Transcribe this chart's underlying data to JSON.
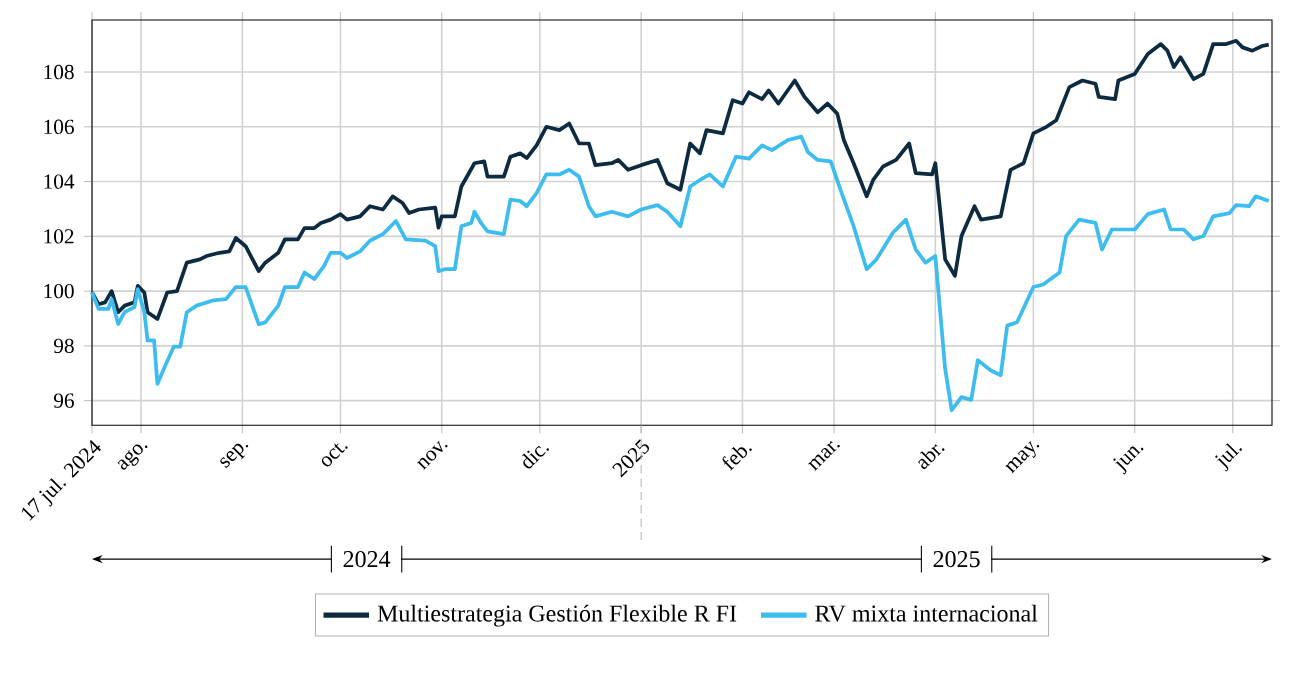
{
  "chart_data": {
    "type": "line",
    "xlim": [
      "2024-07-17",
      "2025-07-13"
    ],
    "ylim": [
      95.1,
      109.9
    ],
    "yticks": [
      96,
      98,
      100,
      102,
      104,
      106,
      108
    ],
    "xticks": [
      {
        "value": "2024-07-17",
        "label": "17 jul. 2024"
      },
      {
        "value": "2024-08-01",
        "label": "ago."
      },
      {
        "value": "2024-09-01",
        "label": "sep."
      },
      {
        "value": "2024-10-01",
        "label": "oct."
      },
      {
        "value": "2024-11-01",
        "label": "nov."
      },
      {
        "value": "2024-12-01",
        "label": "dic."
      },
      {
        "value": "2025-01-01",
        "label": "2025"
      },
      {
        "value": "2025-02-01",
        "label": "feb."
      },
      {
        "value": "2025-03-01",
        "label": "mar."
      },
      {
        "value": "2025-04-01",
        "label": "abr."
      },
      {
        "value": "2025-05-01",
        "label": "may."
      },
      {
        "value": "2025-06-01",
        "label": "jun."
      },
      {
        "value": "2025-07-01",
        "label": "jul."
      }
    ],
    "grid": true,
    "legend": "bottom",
    "marker": "none",
    "line_style": "solid",
    "annotations": [
      "2024",
      "2025"
    ],
    "series": [
      {
        "name": "Multiestrategia Gestión Flexible R FI",
        "color": "#0d2b40",
        "x": [
          "2024-07-17",
          "2024-07-19",
          "2024-07-21",
          "2024-07-23",
          "2024-07-25",
          "2024-07-27",
          "2024-07-30",
          "2024-07-31",
          "2024-08-02",
          "2024-08-03",
          "2024-08-06",
          "2024-08-09",
          "2024-08-12",
          "2024-08-15",
          "2024-08-19",
          "2024-08-21",
          "2024-08-25",
          "2024-08-28",
          "2024-08-30",
          "2024-09-02",
          "2024-09-06",
          "2024-09-08",
          "2024-09-12",
          "2024-09-14",
          "2024-09-18",
          "2024-09-20",
          "2024-09-23",
          "2024-09-25",
          "2024-09-28",
          "2024-10-01",
          "2024-10-03",
          "2024-10-07",
          "2024-10-10",
          "2024-10-14",
          "2024-10-17",
          "2024-10-20",
          "2024-10-22",
          "2024-10-25",
          "2024-10-30",
          "2024-10-31",
          "2024-11-01",
          "2024-11-05",
          "2024-11-07",
          "2024-11-11",
          "2024-11-14",
          "2024-11-15",
          "2024-11-20",
          "2024-11-22",
          "2024-11-25",
          "2024-11-27",
          "2024-11-30",
          "2024-12-03",
          "2024-12-07",
          "2024-12-10",
          "2024-12-13",
          "2024-12-16",
          "2024-12-18",
          "2024-12-23",
          "2024-12-25",
          "2024-12-28",
          "2025-01-01",
          "2025-01-06",
          "2025-01-09",
          "2025-01-13",
          "2025-01-16",
          "2025-01-19",
          "2025-01-21",
          "2025-01-26",
          "2025-01-29",
          "2025-02-01",
          "2025-02-03",
          "2025-02-07",
          "2025-02-09",
          "2025-02-12",
          "2025-02-17",
          "2025-02-20",
          "2025-02-24",
          "2025-02-27",
          "2025-03-02",
          "2025-03-04",
          "2025-03-07",
          "2025-03-11",
          "2025-03-13",
          "2025-03-16",
          "2025-03-20",
          "2025-03-24",
          "2025-03-26",
          "2025-03-31",
          "2025-04-01",
          "2025-04-04",
          "2025-04-07",
          "2025-04-09",
          "2025-04-13",
          "2025-04-15",
          "2025-04-21",
          "2025-04-24",
          "2025-04-28",
          "2025-05-01",
          "2025-05-05",
          "2025-05-08",
          "2025-05-12",
          "2025-05-16",
          "2025-05-20",
          "2025-05-21",
          "2025-05-26",
          "2025-05-27",
          "2025-06-01",
          "2025-06-05",
          "2025-06-09",
          "2025-06-11",
          "2025-06-13",
          "2025-06-15",
          "2025-06-19",
          "2025-06-22",
          "2025-06-25",
          "2025-06-29",
          "2025-07-02",
          "2025-07-04",
          "2025-07-07",
          "2025-07-10",
          "2025-07-12"
        ],
        "values": [
          99.95,
          99.52,
          99.59,
          100.0,
          99.23,
          99.47,
          99.59,
          100.19,
          99.95,
          99.23,
          98.98,
          99.95,
          100.0,
          101.04,
          101.16,
          101.28,
          101.4,
          101.45,
          101.94,
          101.64,
          100.73,
          101.04,
          101.4,
          101.89,
          101.89,
          102.3,
          102.3,
          102.49,
          102.61,
          102.81,
          102.61,
          102.73,
          103.1,
          102.98,
          103.46,
          103.22,
          102.85,
          102.98,
          103.05,
          102.32,
          102.73,
          102.73,
          103.82,
          104.67,
          104.74,
          104.18,
          104.18,
          104.91,
          105.03,
          104.86,
          105.32,
          106.0,
          105.88,
          106.12,
          105.39,
          105.39,
          104.6,
          104.67,
          104.79,
          104.43,
          104.6,
          104.79,
          103.94,
          103.7,
          105.39,
          105.03,
          105.88,
          105.76,
          106.97,
          106.85,
          107.26,
          107.01,
          107.33,
          106.85,
          107.69,
          107.09,
          106.53,
          106.85,
          106.48,
          105.52,
          104.67,
          103.46,
          104.06,
          104.55,
          104.79,
          105.39,
          104.31,
          104.26,
          104.67,
          101.16,
          100.56,
          102.01,
          103.1,
          102.61,
          102.73,
          104.43,
          104.67,
          105.76,
          106.0,
          106.24,
          107.45,
          107.69,
          107.57,
          107.09,
          107.01,
          107.69,
          107.93,
          108.66,
          109.02,
          108.78,
          108.18,
          108.54,
          107.74,
          107.93,
          109.02,
          109.02,
          109.14,
          108.9,
          108.78,
          108.95,
          109.0
        ]
      },
      {
        "name": "RV mixta internacional",
        "color": "#3dbcf0",
        "x": [
          "2024-07-17",
          "2024-07-19",
          "2024-07-22",
          "2024-07-23",
          "2024-07-25",
          "2024-07-27",
          "2024-07-30",
          "2024-07-31",
          "2024-08-02",
          "2024-08-03",
          "2024-08-05",
          "2024-08-06",
          "2024-08-08",
          "2024-08-11",
          "2024-08-13",
          "2024-08-15",
          "2024-08-18",
          "2024-08-23",
          "2024-08-27",
          "2024-08-30",
          "2024-09-02",
          "2024-09-06",
          "2024-09-08",
          "2024-09-12",
          "2024-09-14",
          "2024-09-18",
          "2024-09-20",
          "2024-09-23",
          "2024-09-26",
          "2024-09-28",
          "2024-10-01",
          "2024-10-03",
          "2024-10-07",
          "2024-10-10",
          "2024-10-14",
          "2024-10-18",
          "2024-10-21",
          "2024-10-27",
          "2024-10-30",
          "2024-10-31",
          "2024-11-02",
          "2024-11-05",
          "2024-11-07",
          "2024-11-10",
          "2024-11-11",
          "2024-11-13",
          "2024-11-15",
          "2024-11-20",
          "2024-11-22",
          "2024-11-25",
          "2024-11-27",
          "2024-11-30",
          "2024-12-03",
          "2024-12-07",
          "2024-12-10",
          "2024-12-13",
          "2024-12-16",
          "2024-12-18",
          "2024-12-23",
          "2024-12-28",
          "2025-01-01",
          "2025-01-06",
          "2025-01-09",
          "2025-01-13",
          "2025-01-16",
          "2025-01-19",
          "2025-01-22",
          "2025-01-26",
          "2025-01-30",
          "2025-02-03",
          "2025-02-07",
          "2025-02-10",
          "2025-02-15",
          "2025-02-19",
          "2025-02-21",
          "2025-02-24",
          "2025-02-28",
          "2025-03-03",
          "2025-03-07",
          "2025-03-11",
          "2025-03-14",
          "2025-03-19",
          "2025-03-23",
          "2025-03-26",
          "2025-03-29",
          "2025-04-01",
          "2025-04-04",
          "2025-04-06",
          "2025-04-09",
          "2025-04-12",
          "2025-04-14",
          "2025-04-18",
          "2025-04-21",
          "2025-04-23",
          "2025-04-26",
          "2025-05-01",
          "2025-05-04",
          "2025-05-09",
          "2025-05-11",
          "2025-05-15",
          "2025-05-20",
          "2025-05-22",
          "2025-05-25",
          "2025-06-01",
          "2025-06-05",
          "2025-06-10",
          "2025-06-12",
          "2025-06-16",
          "2025-06-19",
          "2025-06-22",
          "2025-06-25",
          "2025-06-30",
          "2025-07-02",
          "2025-07-06",
          "2025-07-08",
          "2025-07-12"
        ],
        "values": [
          99.95,
          99.35,
          99.35,
          99.7,
          98.8,
          99.23,
          99.42,
          100.07,
          99.23,
          98.2,
          98.2,
          96.61,
          97.17,
          97.97,
          97.97,
          99.23,
          99.47,
          99.66,
          99.71,
          100.15,
          100.15,
          98.79,
          98.86,
          99.47,
          100.15,
          100.15,
          100.68,
          100.44,
          100.92,
          101.4,
          101.4,
          101.21,
          101.45,
          101.84,
          102.08,
          102.56,
          101.89,
          101.84,
          101.64,
          100.73,
          100.8,
          100.8,
          102.37,
          102.49,
          102.9,
          102.49,
          102.18,
          102.08,
          103.34,
          103.29,
          103.1,
          103.58,
          104.26,
          104.26,
          104.43,
          104.18,
          103.1,
          102.73,
          102.9,
          102.73,
          102.98,
          103.14,
          102.9,
          102.37,
          103.82,
          104.06,
          104.26,
          103.82,
          104.91,
          104.84,
          105.32,
          105.15,
          105.52,
          105.64,
          105.08,
          104.79,
          104.74,
          103.7,
          102.37,
          100.8,
          101.16,
          102.13,
          102.61,
          101.52,
          101.04,
          101.28,
          97.17,
          95.65,
          96.13,
          96.03,
          97.48,
          97.1,
          96.93,
          98.74,
          98.86,
          100.15,
          100.24,
          100.68,
          102.01,
          102.61,
          102.49,
          101.52,
          102.25,
          102.25,
          102.81,
          102.98,
          102.25,
          102.25,
          101.89,
          102.01,
          102.73,
          102.85,
          103.14,
          103.1,
          103.46,
          103.29
        ]
      }
    ]
  }
}
